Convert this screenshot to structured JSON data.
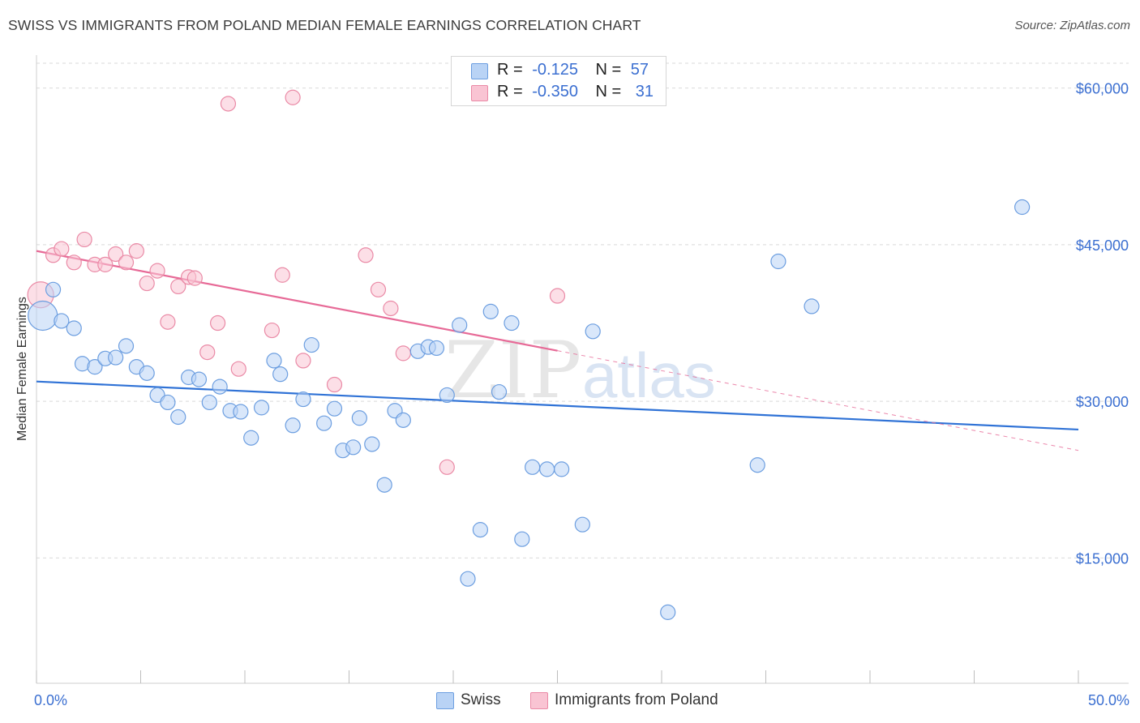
{
  "title": "SWISS VS IMMIGRANTS FROM POLAND MEDIAN FEMALE EARNINGS CORRELATION CHART",
  "source": "Source: ZipAtlas.com",
  "watermark": {
    "zip": "ZIP",
    "atlas": "atlas"
  },
  "legend_top": [
    {
      "r_label": "R =",
      "r_value": "-0.125",
      "n_label": "N =",
      "n_value": "57",
      "color": "#b9d3f5",
      "stroke": "#6c9ee0"
    },
    {
      "r_label": "R =",
      "r_value": "-0.350",
      "n_label": "N =",
      "n_value": "31",
      "color": "#f9c4d3",
      "stroke": "#ea8aa6"
    }
  ],
  "legend_bottom": [
    {
      "label": "Swiss",
      "color": "#b9d3f5",
      "stroke": "#6c9ee0"
    },
    {
      "label": "Immigrants from Poland",
      "color": "#f9c4d3",
      "stroke": "#ea8aa6"
    }
  ],
  "colors": {
    "swiss_line": "#2f72d6",
    "poland_line": "#e76a97",
    "tick_label": "#3b6fd1",
    "grid": "#d9d9d9"
  },
  "chart_data": {
    "type": "scatter",
    "title": "SWISS VS IMMIGRANTS FROM POLAND MEDIAN FEMALE EARNINGS CORRELATION CHART",
    "xlabel": "",
    "ylabel": "Median Female Earnings",
    "xlim": [
      0,
      50
    ],
    "ylim": [
      3000,
      63000
    ],
    "x_tick_labels": [
      {
        "value": 0,
        "label": "0.0%"
      },
      {
        "value": 50,
        "label": "50.0%"
      }
    ],
    "x_minor_ticks": [
      0,
      5,
      10,
      15,
      20,
      25,
      30,
      35,
      40,
      45,
      50
    ],
    "y_ticks": [
      {
        "value": 15000,
        "label": "$15,000"
      },
      {
        "value": 30000,
        "label": "$30,000"
      },
      {
        "value": 45000,
        "label": "$45,000"
      },
      {
        "value": 60000,
        "label": "$60,000"
      }
    ],
    "series": [
      {
        "name": "Swiss",
        "points": [
          [
            0.3,
            38200,
            18
          ],
          [
            0.8,
            40700,
            9
          ],
          [
            1.2,
            37700,
            9
          ],
          [
            1.8,
            37000,
            9
          ],
          [
            2.2,
            33600,
            9
          ],
          [
            2.8,
            33300,
            9
          ],
          [
            3.3,
            34100,
            9
          ],
          [
            3.8,
            34200,
            9
          ],
          [
            4.3,
            35300,
            9
          ],
          [
            4.8,
            33300,
            9
          ],
          [
            5.3,
            32700,
            9
          ],
          [
            5.8,
            30600,
            9
          ],
          [
            6.3,
            29900,
            9
          ],
          [
            6.8,
            28500,
            9
          ],
          [
            7.3,
            32300,
            9
          ],
          [
            7.8,
            32100,
            9
          ],
          [
            8.3,
            29900,
            9
          ],
          [
            8.8,
            31400,
            9
          ],
          [
            9.3,
            29100,
            9
          ],
          [
            9.8,
            29000,
            9
          ],
          [
            10.3,
            26500,
            9
          ],
          [
            10.8,
            29400,
            9
          ],
          [
            11.4,
            33900,
            9
          ],
          [
            11.7,
            32600,
            9
          ],
          [
            12.3,
            27700,
            9
          ],
          [
            12.8,
            30200,
            9
          ],
          [
            13.2,
            35400,
            9
          ],
          [
            13.8,
            27900,
            9
          ],
          [
            14.3,
            29300,
            9
          ],
          [
            14.7,
            25300,
            9
          ],
          [
            15.2,
            25600,
            9
          ],
          [
            15.5,
            28400,
            9
          ],
          [
            16.1,
            25900,
            9
          ],
          [
            16.7,
            22000,
            9
          ],
          [
            17.2,
            29100,
            9
          ],
          [
            17.6,
            28200,
            9
          ],
          [
            18.3,
            34800,
            9
          ],
          [
            18.8,
            35200,
            9
          ],
          [
            19.2,
            35100,
            9
          ],
          [
            19.7,
            30600,
            9
          ],
          [
            20.3,
            37300,
            9
          ],
          [
            20.7,
            13000,
            9
          ],
          [
            21.3,
            17700,
            9
          ],
          [
            21.8,
            38600,
            9
          ],
          [
            22.2,
            30900,
            9
          ],
          [
            22.8,
            37500,
            9
          ],
          [
            23.3,
            16800,
            9
          ],
          [
            23.8,
            23700,
            9
          ],
          [
            24.5,
            23500,
            9
          ],
          [
            25.2,
            23500,
            9
          ],
          [
            26.2,
            18200,
            9
          ],
          [
            26.7,
            36700,
            9
          ],
          [
            30.3,
            9800,
            9
          ],
          [
            34.6,
            23900,
            9
          ],
          [
            35.6,
            43400,
            9
          ],
          [
            37.2,
            39100,
            9
          ],
          [
            47.3,
            48600,
            9
          ]
        ],
        "trend": {
          "x": [
            0,
            50
          ],
          "y": [
            31900,
            27300
          ]
        }
      },
      {
        "name": "Immigrants from Poland",
        "points": [
          [
            0.2,
            40200,
            16
          ],
          [
            0.8,
            44000,
            9
          ],
          [
            1.2,
            44600,
            9
          ],
          [
            1.8,
            43300,
            9
          ],
          [
            2.3,
            45500,
            9
          ],
          [
            2.8,
            43100,
            9
          ],
          [
            3.3,
            43100,
            9
          ],
          [
            3.8,
            44100,
            9
          ],
          [
            4.3,
            43300,
            9
          ],
          [
            4.8,
            44400,
            9
          ],
          [
            5.3,
            41300,
            9
          ],
          [
            5.8,
            42500,
            9
          ],
          [
            6.3,
            37600,
            9
          ],
          [
            6.8,
            41000,
            9
          ],
          [
            7.3,
            41900,
            9
          ],
          [
            7.6,
            41800,
            9
          ],
          [
            8.2,
            34700,
            9
          ],
          [
            8.7,
            37500,
            9
          ],
          [
            9.2,
            58500,
            9
          ],
          [
            9.7,
            33100,
            9
          ],
          [
            11.3,
            36800,
            9
          ],
          [
            11.8,
            42100,
            9
          ],
          [
            12.3,
            59100,
            9
          ],
          [
            12.8,
            33900,
            9
          ],
          [
            14.3,
            31600,
            9
          ],
          [
            15.8,
            44000,
            9
          ],
          [
            16.4,
            40700,
            9
          ],
          [
            17.0,
            38900,
            9
          ],
          [
            17.6,
            34600,
            9
          ],
          [
            19.7,
            23700,
            9
          ],
          [
            25.0,
            40100,
            9
          ]
        ],
        "trend": {
          "x": [
            0,
            50
          ],
          "y": [
            44400,
            25300
          ],
          "solid_until_x": 25.0
        }
      }
    ]
  }
}
